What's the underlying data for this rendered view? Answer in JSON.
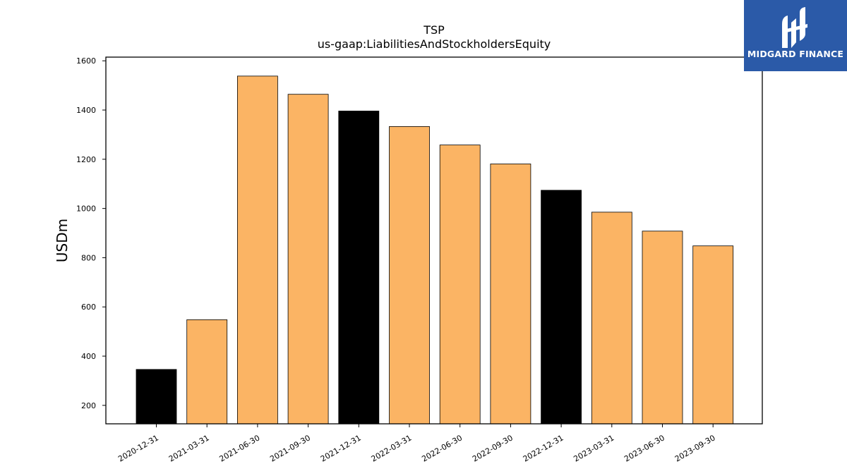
{
  "chart_data": {
    "type": "bar",
    "title": "TSP",
    "subtitle": "us-gaap:LiabilitiesAndStockholdersEquity",
    "ylabel": "USDm",
    "xlabel": "",
    "ylim": [
      125,
      1615
    ],
    "yticks": [
      200,
      400,
      600,
      800,
      1000,
      1200,
      1400,
      1600
    ],
    "categories": [
      "2020-12-31",
      "2021-03-31",
      "2021-06-30",
      "2021-09-30",
      "2021-12-31",
      "2022-03-31",
      "2022-06-30",
      "2022-09-30",
      "2022-12-31",
      "2023-03-31",
      "2023-06-30",
      "2023-09-30"
    ],
    "values": [
      346,
      548,
      1538,
      1464,
      1396,
      1333,
      1258,
      1181,
      1074,
      985,
      908,
      848
    ],
    "bar_colors": [
      "#000000",
      "#fbb464",
      "#fbb464",
      "#fbb464",
      "#000000",
      "#fbb464",
      "#fbb464",
      "#fbb464",
      "#000000",
      "#fbb464",
      "#fbb464",
      "#fbb464"
    ],
    "grid": false,
    "legend": "none"
  },
  "logo": {
    "text": "MIDGARD FINANCE",
    "background": "#2b5aa8",
    "icon": "midgard-finance-logo-icon"
  }
}
